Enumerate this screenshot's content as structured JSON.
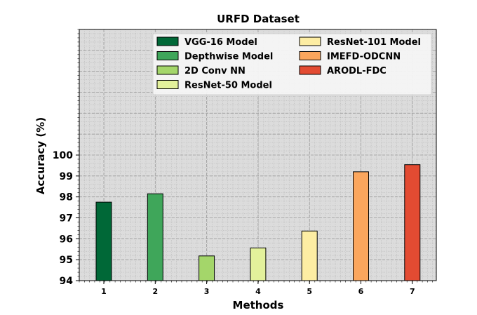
{
  "chart_data": {
    "type": "bar",
    "title": "URFD Dataset",
    "xlabel": "Methods",
    "ylabel": "Accuracy (%)",
    "categories": [
      "1",
      "2",
      "3",
      "4",
      "5",
      "6",
      "7"
    ],
    "values": [
      97.75,
      98.15,
      95.18,
      95.56,
      96.37,
      99.2,
      99.54
    ],
    "series_names": [
      "VGG-16 Model",
      "Depthwise Model",
      "2D Conv NN",
      "ResNet-50 Model",
      "ResNet-101 Model",
      "IMEFD-ODCNN",
      "ARODL-FDC"
    ],
    "colors": [
      "#006837",
      "#3fa65a",
      "#a4d66a",
      "#e3f19b",
      "#fdeda3",
      "#fba65d",
      "#e34b32"
    ],
    "yticks": [
      "94",
      "95",
      "96",
      "97",
      "98",
      "99",
      "100"
    ],
    "ylim": [
      94,
      106
    ],
    "grid": true,
    "legend_position": "top-right"
  }
}
